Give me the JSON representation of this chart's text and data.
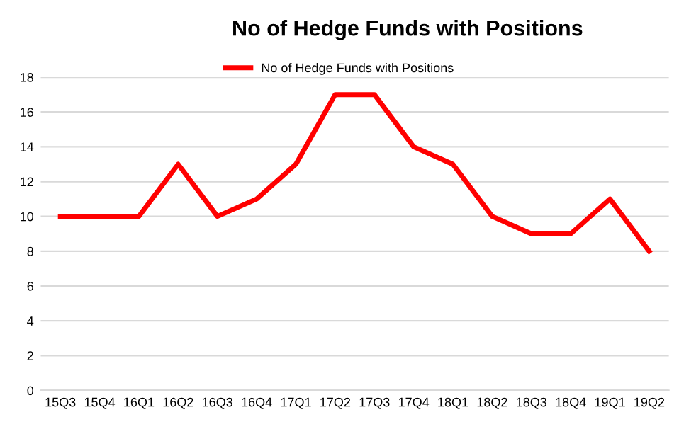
{
  "chart_data": {
    "type": "line",
    "title": "No of Hedge Funds with Positions",
    "categories": [
      "15Q3",
      "15Q4",
      "16Q1",
      "16Q2",
      "16Q3",
      "16Q4",
      "17Q1",
      "17Q2",
      "17Q3",
      "17Q4",
      "18Q1",
      "18Q2",
      "18Q3",
      "18Q4",
      "19Q1",
      "19Q2"
    ],
    "series": [
      {
        "name": "No of Hedge Funds with Positions",
        "color": "#ff0000",
        "values": [
          10,
          10,
          10,
          13,
          10,
          11,
          13,
          17,
          17,
          14,
          13,
          10,
          9,
          9,
          11,
          8
        ]
      }
    ],
    "ylim": [
      0,
      18
    ],
    "yticks": [
      0,
      2,
      4,
      6,
      8,
      10,
      12,
      14,
      16,
      18
    ],
    "grid": "y",
    "legend": "top",
    "marker": "none",
    "line_style": "solid"
  }
}
